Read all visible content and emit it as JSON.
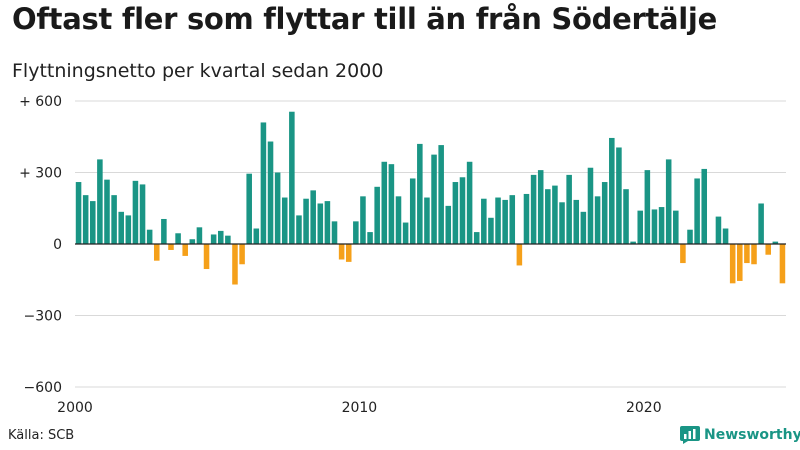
{
  "title": "Oftast fler som flyttar till än från Södertälje",
  "subtitle": "Flyttningsnetto per kvartal sedan 2000",
  "source": "Källa: SCB",
  "brand": "Newsworthy",
  "colors": {
    "positive": "#1a9585",
    "negative": "#f5a01a",
    "grid": "#d9d9d9",
    "zero": "#222222",
    "brand": "#1a9585"
  },
  "chart_data": {
    "type": "bar",
    "title": "Oftast fler som flyttar till än från Södertälje",
    "subtitle": "Flyttningsnetto per kvartal sedan 2000",
    "ylim": [
      -600,
      600
    ],
    "yticks": [
      600,
      300,
      0,
      -300,
      -600
    ],
    "ytick_labels": [
      "+ 600",
      "+ 300",
      "0",
      "−300",
      "−600"
    ],
    "xticks": [
      "2000",
      "2010",
      "2020"
    ],
    "grid": true,
    "x_start": "2000 Q1",
    "frequency": "quarterly",
    "values": [
      260,
      205,
      180,
      355,
      270,
      205,
      135,
      120,
      265,
      250,
      60,
      -70,
      105,
      -25,
      45,
      -50,
      20,
      70,
      -105,
      40,
      55,
      35,
      -170,
      -85,
      295,
      65,
      510,
      430,
      300,
      195,
      555,
      120,
      190,
      225,
      170,
      180,
      95,
      -65,
      -75,
      95,
      200,
      50,
      240,
      345,
      335,
      200,
      90,
      275,
      420,
      195,
      375,
      415,
      160,
      260,
      280,
      345,
      50,
      190,
      110,
      195,
      185,
      205,
      -90,
      210,
      290,
      310,
      230,
      245,
      175,
      290,
      185,
      135,
      320,
      200,
      260,
      445,
      405,
      230,
      10,
      140,
      310,
      145,
      155,
      355,
      140,
      -80,
      60,
      275,
      315,
      0,
      115,
      65,
      -165,
      -155,
      -80,
      -85,
      170,
      -45,
      10,
      -165
    ]
  }
}
